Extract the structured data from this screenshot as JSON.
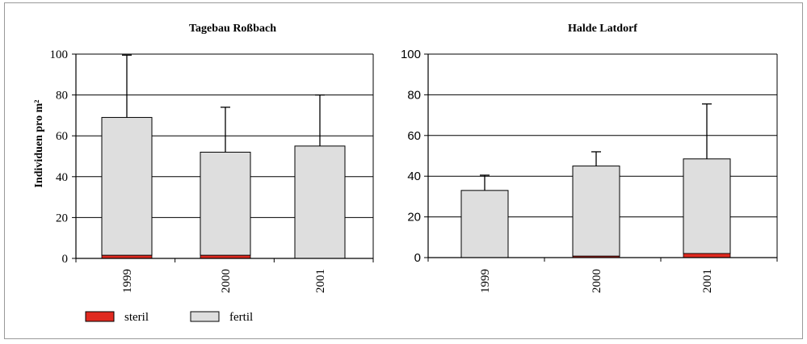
{
  "chart_data": [
    {
      "type": "bar",
      "stacked": true,
      "title": "Tagebau Roßbach",
      "ylabel": "Individuen pro m²",
      "xlabel": "",
      "categories": [
        "1999",
        "2000",
        "2001"
      ],
      "ylim": [
        0,
        100
      ],
      "yticks": [
        0,
        20,
        40,
        60,
        80,
        100
      ],
      "grid": true,
      "series": [
        {
          "name": "steril",
          "values": [
            1.5,
            1.5,
            0
          ]
        },
        {
          "name": "fertil",
          "values": [
            67.5,
            50.5,
            55
          ]
        }
      ],
      "error_top": [
        99.5,
        74,
        80
      ]
    },
    {
      "type": "bar",
      "stacked": true,
      "title": "Halde Latdorf",
      "ylabel": "",
      "xlabel": "",
      "categories": [
        "1999",
        "2000",
        "2001"
      ],
      "ylim": [
        0,
        100
      ],
      "yticks": [
        0,
        20,
        40,
        60,
        80,
        100
      ],
      "grid": true,
      "series": [
        {
          "name": "steril",
          "values": [
            0,
            0.7,
            2
          ]
        },
        {
          "name": "fertil",
          "values": [
            33,
            44.3,
            46.5
          ]
        }
      ],
      "error_top": [
        40.5,
        52,
        75.5
      ]
    }
  ],
  "legend": {
    "placement": "bottom-left",
    "items": [
      {
        "label": "steril",
        "color": "#e02a20"
      },
      {
        "label": "fertil",
        "color": "#dedede"
      }
    ]
  },
  "colors": {
    "steril": "#e02a20",
    "fertil": "#dedede",
    "grid": "#000000",
    "bar_edge": "#000000"
  }
}
